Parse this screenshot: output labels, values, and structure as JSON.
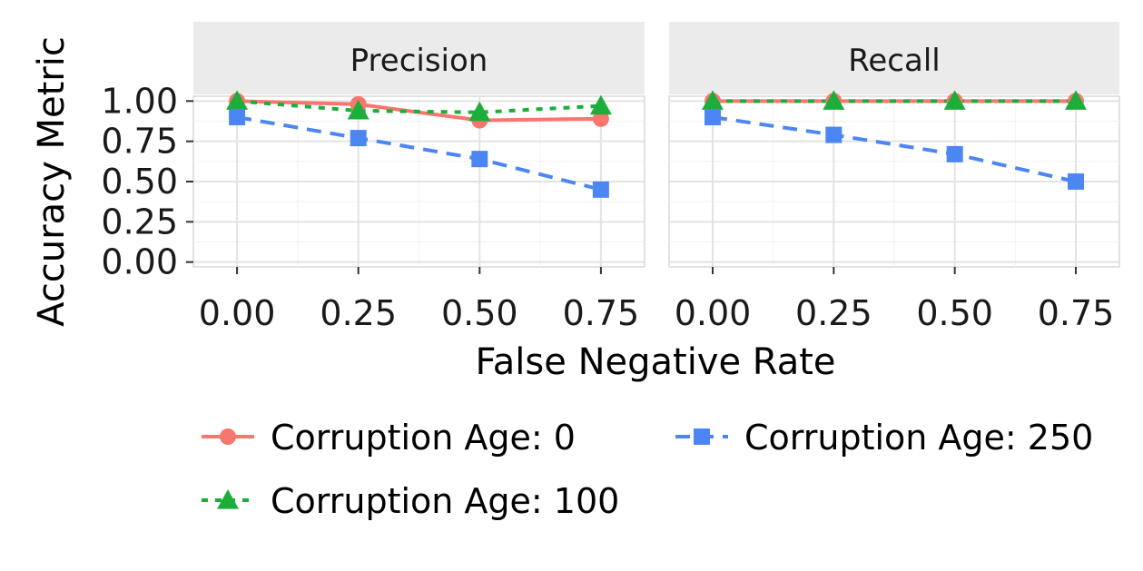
{
  "chart_data": {
    "type": "line",
    "xlabel": "False Negative Rate",
    "ylabel": "Accuracy Metric",
    "x": [
      0.0,
      0.25,
      0.5,
      0.75
    ],
    "x_tick_labels": [
      "0.00",
      "0.25",
      "0.50",
      "0.75"
    ],
    "y_tick_labels": [
      "0.00",
      "0.25",
      "0.50",
      "0.75",
      "1.00"
    ],
    "y_ticks": [
      0.0,
      0.25,
      0.5,
      0.75,
      1.0
    ],
    "xlim": [
      -0.09,
      0.84
    ],
    "ylim": [
      -0.03,
      1.03
    ],
    "grid": true,
    "legend_position": "bottom",
    "panels": [
      {
        "title": "Precision",
        "series": [
          {
            "name": "Corruption Age: 0",
            "values": [
              1.0,
              0.98,
              0.88,
              0.89
            ]
          },
          {
            "name": "Corruption Age: 100",
            "values": [
              1.0,
              0.94,
              0.93,
              0.97
            ]
          },
          {
            "name": "Corruption Age: 250",
            "values": [
              0.9,
              0.77,
              0.64,
              0.45
            ]
          }
        ]
      },
      {
        "title": "Recall",
        "series": [
          {
            "name": "Corruption Age: 0",
            "values": [
              1.0,
              1.0,
              1.0,
              1.0
            ]
          },
          {
            "name": "Corruption Age: 100",
            "values": [
              1.0,
              1.0,
              1.0,
              1.0
            ]
          },
          {
            "name": "Corruption Age: 250",
            "values": [
              0.9,
              0.79,
              0.67,
              0.5
            ]
          }
        ]
      }
    ],
    "series_styles": [
      {
        "color": "#F8766D",
        "dash": "solid",
        "marker": "circle"
      },
      {
        "color": "#1CAD3A",
        "dash": "dotted",
        "marker": "triangle"
      },
      {
        "color": "#4C86F5",
        "dash": "dashed",
        "marker": "square"
      }
    ]
  }
}
